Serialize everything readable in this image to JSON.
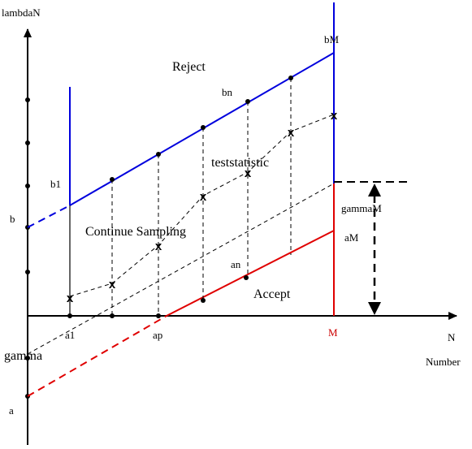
{
  "colors": {
    "reject_line": "#0000dd",
    "accept_line": "#e00000",
    "axis": "#000000",
    "dashed_guides": "#000000"
  },
  "axes": {
    "y_label": "lambdaN",
    "x_label": "N",
    "x_sublabel": "Number"
  },
  "regions": {
    "reject": "Reject",
    "continue": "Continue Sampling",
    "accept": "Accept",
    "statistic": "teststatistic"
  },
  "points": {
    "b": "b",
    "b1": "b1",
    "bn": "bn",
    "bM": "bM",
    "a": "a",
    "a1": "a1",
    "ap": "ap",
    "an": "an",
    "aM": "aM",
    "gamma": "gamma",
    "gammaM": "gammaM",
    "M": "M"
  },
  "marker_symbol": "x"
}
